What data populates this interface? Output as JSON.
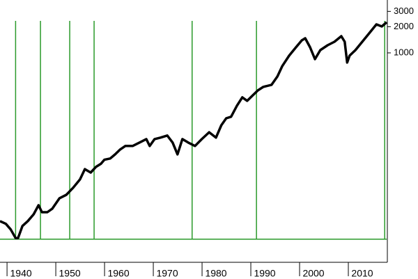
{
  "chart_data": {
    "type": "line",
    "x": [
      1935.7,
      1936.9,
      1937.9,
      1938.9,
      1939.4,
      1940.3,
      1941.4,
      1942.6,
      1943.6,
      1944.3,
      1945.4,
      1946.4,
      1947.9,
      1949.3,
      1950.7,
      1952.1,
      1953.1,
      1954.3,
      1955.4,
      1956.4,
      1957.1,
      1958.3,
      1959.3,
      1960.3,
      1961.4,
      1962.9,
      1964.3,
      1965.7,
      1966.4,
      1967.4,
      1968.6,
      1970,
      1971.1,
      1972.1,
      1973.1,
      1974.3,
      1975.7,
      1977.1,
      1978.6,
      1980,
      1981.1,
      1982.1,
      1983.1,
      1984.3,
      1985.4,
      1986.4,
      1987.4,
      1988.6,
      1989.7,
      1991.4,
      1992.6,
      1993.6,
      1995,
      1996.4,
      1997.6,
      1998.3,
      1999.3,
      2000.3,
      2001.4,
      2002.9,
      2004.3,
      2005.7,
      2006.4,
      2006.9,
      2007.4,
      2008.6,
      2010,
      2011.4,
      2012.9,
      2014,
      2015
    ],
    "series": [
      {
        "color": "#000000",
        "values": [
          11.6,
          10.8,
          9.3,
          7.4,
          7.4,
          10.2,
          11.6,
          13.9,
          17.7,
          14.7,
          14.7,
          16.1,
          21.3,
          23.3,
          28.1,
          35,
          46,
          42,
          49,
          53,
          59,
          61,
          68,
          77,
          85,
          85,
          93,
          102,
          85,
          102,
          106,
          112,
          93,
          68,
          102,
          93,
          85,
          102,
          122,
          106,
          147,
          177,
          184,
          247,
          308,
          281,
          319,
          370,
          406,
          429,
          535,
          705,
          929,
          1159,
          1393,
          1472,
          1159,
          847,
          1076,
          1225,
          1343,
          1556,
          1343,
          773,
          929,
          1076,
          1343,
          1675,
          2128,
          2014,
          2249
        ]
      }
    ],
    "xlim": [
      1935.7,
      2015
    ],
    "xticks": [
      1940,
      1950,
      1960,
      1970,
      1980,
      1990,
      2000,
      2010
    ],
    "ylim": [
      3.9,
      4055
    ],
    "yticks": [
      1000,
      2000,
      3000
    ],
    "log_y": true,
    "vlines": [
      1938.9,
      1944,
      1950,
      1955,
      1975.1,
      1988.3,
      2014.6
    ],
    "hline": 7.2,
    "guide_color": "#2a9a2a"
  }
}
